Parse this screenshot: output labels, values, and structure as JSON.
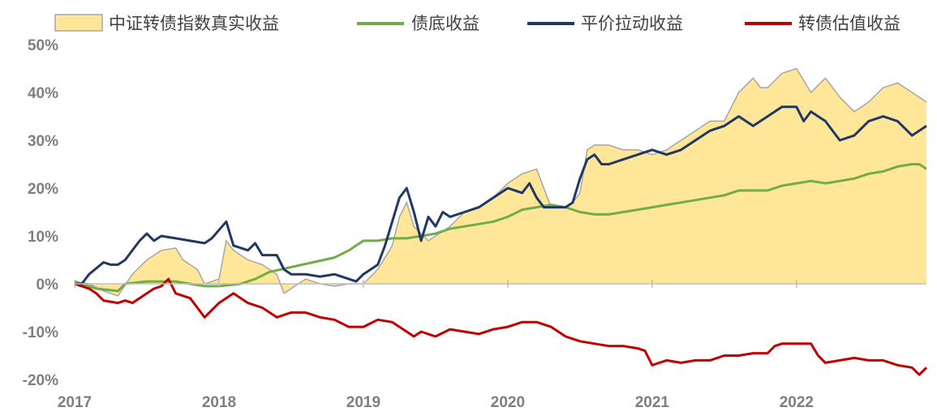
{
  "chart_data": {
    "type": "line",
    "title": "",
    "xlabel": "",
    "ylabel": "",
    "x_ticks": [
      "2017",
      "2018",
      "2019",
      "2020",
      "2021",
      "2022"
    ],
    "x_range": [
      2017.0,
      2022.9
    ],
    "y_ticks": [
      "50%",
      "40%",
      "30%",
      "20%",
      "10%",
      "0%",
      "-10%",
      "-20%"
    ],
    "ylim": [
      -20,
      50
    ],
    "unit": "%",
    "grid": false,
    "legend_position": "top",
    "series": [
      {
        "name": "中证转债指数真实收益",
        "kind": "area",
        "color": "#ffe699",
        "stroke": "#a6a6a6",
        "points": [
          [
            2017.0,
            0.5
          ],
          [
            2017.1,
            0
          ],
          [
            2017.2,
            -1.5
          ],
          [
            2017.3,
            -2.5
          ],
          [
            2017.4,
            2
          ],
          [
            2017.5,
            5
          ],
          [
            2017.6,
            7
          ],
          [
            2017.7,
            7.5
          ],
          [
            2017.75,
            5
          ],
          [
            2017.85,
            3
          ],
          [
            2017.9,
            0
          ],
          [
            2018.0,
            1
          ],
          [
            2018.05,
            9
          ],
          [
            2018.1,
            7
          ],
          [
            2018.2,
            5
          ],
          [
            2018.3,
            4
          ],
          [
            2018.4,
            2
          ],
          [
            2018.45,
            -2
          ],
          [
            2018.5,
            -1
          ],
          [
            2018.6,
            1
          ],
          [
            2018.7,
            0
          ],
          [
            2018.8,
            -0.5
          ],
          [
            2018.9,
            0
          ],
          [
            2019.0,
            0
          ],
          [
            2019.1,
            3
          ],
          [
            2019.2,
            8
          ],
          [
            2019.25,
            14
          ],
          [
            2019.3,
            17
          ],
          [
            2019.35,
            12
          ],
          [
            2019.45,
            9
          ],
          [
            2019.5,
            10
          ],
          [
            2019.6,
            12
          ],
          [
            2019.7,
            15
          ],
          [
            2019.8,
            16
          ],
          [
            2019.9,
            18
          ],
          [
            2020.0,
            21
          ],
          [
            2020.1,
            23
          ],
          [
            2020.2,
            24
          ],
          [
            2020.3,
            16
          ],
          [
            2020.4,
            16
          ],
          [
            2020.45,
            17
          ],
          [
            2020.5,
            19
          ],
          [
            2020.55,
            28
          ],
          [
            2020.6,
            29
          ],
          [
            2020.7,
            29
          ],
          [
            2020.8,
            28
          ],
          [
            2020.9,
            28
          ],
          [
            2021.0,
            27
          ],
          [
            2021.1,
            28
          ],
          [
            2021.2,
            30
          ],
          [
            2021.3,
            32
          ],
          [
            2021.4,
            34
          ],
          [
            2021.5,
            34
          ],
          [
            2021.6,
            40
          ],
          [
            2021.7,
            43
          ],
          [
            2021.75,
            41
          ],
          [
            2021.8,
            41
          ],
          [
            2021.9,
            44
          ],
          [
            2022.0,
            45
          ],
          [
            2022.1,
            40
          ],
          [
            2022.2,
            43
          ],
          [
            2022.3,
            39
          ],
          [
            2022.4,
            36
          ],
          [
            2022.5,
            38
          ],
          [
            2022.6,
            41
          ],
          [
            2022.7,
            42
          ],
          [
            2022.8,
            40
          ],
          [
            2022.9,
            38
          ]
        ]
      },
      {
        "name": "债底收益",
        "kind": "line",
        "color": "#70ad47",
        "points": [
          [
            2017.0,
            0.5
          ],
          [
            2017.15,
            -1
          ],
          [
            2017.3,
            -1.5
          ],
          [
            2017.35,
            0
          ],
          [
            2017.5,
            0.5
          ],
          [
            2017.7,
            0.5
          ],
          [
            2017.8,
            0
          ],
          [
            2017.9,
            -0.5
          ],
          [
            2018.0,
            -0.5
          ],
          [
            2018.15,
            0
          ],
          [
            2018.25,
            1
          ],
          [
            2018.35,
            2.5
          ],
          [
            2018.5,
            3.5
          ],
          [
            2018.65,
            4.5
          ],
          [
            2018.8,
            5.5
          ],
          [
            2018.9,
            7
          ],
          [
            2019.0,
            9
          ],
          [
            2019.1,
            9
          ],
          [
            2019.2,
            9.5
          ],
          [
            2019.3,
            9.5
          ],
          [
            2019.4,
            10
          ],
          [
            2019.5,
            10.5
          ],
          [
            2019.6,
            11.5
          ],
          [
            2019.7,
            12
          ],
          [
            2019.8,
            12.5
          ],
          [
            2019.9,
            13
          ],
          [
            2020.0,
            14
          ],
          [
            2020.1,
            15.5
          ],
          [
            2020.2,
            16
          ],
          [
            2020.3,
            16.5
          ],
          [
            2020.4,
            16
          ],
          [
            2020.5,
            15
          ],
          [
            2020.6,
            14.5
          ],
          [
            2020.7,
            14.5
          ],
          [
            2020.8,
            15
          ],
          [
            2020.9,
            15.5
          ],
          [
            2021.0,
            16
          ],
          [
            2021.1,
            16.5
          ],
          [
            2021.2,
            17
          ],
          [
            2021.3,
            17.5
          ],
          [
            2021.4,
            18
          ],
          [
            2021.5,
            18.5
          ],
          [
            2021.6,
            19.5
          ],
          [
            2021.7,
            19.5
          ],
          [
            2021.8,
            19.5
          ],
          [
            2021.9,
            20.5
          ],
          [
            2022.0,
            21
          ],
          [
            2022.1,
            21.5
          ],
          [
            2022.2,
            21
          ],
          [
            2022.3,
            21.5
          ],
          [
            2022.4,
            22
          ],
          [
            2022.5,
            23
          ],
          [
            2022.6,
            23.5
          ],
          [
            2022.7,
            24.5
          ],
          [
            2022.8,
            25
          ],
          [
            2022.85,
            25
          ],
          [
            2022.9,
            24
          ]
        ]
      },
      {
        "name": "平价拉动收益",
        "kind": "line",
        "color": "#1f3864",
        "points": [
          [
            2017.0,
            0
          ],
          [
            2017.05,
            0
          ],
          [
            2017.1,
            2
          ],
          [
            2017.2,
            4.5
          ],
          [
            2017.25,
            4
          ],
          [
            2017.3,
            4
          ],
          [
            2017.35,
            5
          ],
          [
            2017.45,
            9
          ],
          [
            2017.5,
            10.5
          ],
          [
            2017.55,
            9
          ],
          [
            2017.6,
            10
          ],
          [
            2017.7,
            9.5
          ],
          [
            2017.8,
            9
          ],
          [
            2017.9,
            8.5
          ],
          [
            2017.95,
            9.5
          ],
          [
            2018.05,
            13
          ],
          [
            2018.1,
            8
          ],
          [
            2018.2,
            7
          ],
          [
            2018.25,
            8.5
          ],
          [
            2018.3,
            6
          ],
          [
            2018.4,
            6
          ],
          [
            2018.45,
            3
          ],
          [
            2018.5,
            2
          ],
          [
            2018.6,
            2
          ],
          [
            2018.7,
            1.5
          ],
          [
            2018.8,
            2
          ],
          [
            2018.9,
            1
          ],
          [
            2018.95,
            0.5
          ],
          [
            2019.0,
            2
          ],
          [
            2019.1,
            4
          ],
          [
            2019.15,
            8
          ],
          [
            2019.2,
            13
          ],
          [
            2019.25,
            18
          ],
          [
            2019.3,
            20
          ],
          [
            2019.35,
            15
          ],
          [
            2019.4,
            9
          ],
          [
            2019.45,
            14
          ],
          [
            2019.5,
            12
          ],
          [
            2019.55,
            15
          ],
          [
            2019.6,
            14
          ],
          [
            2019.7,
            15
          ],
          [
            2019.8,
            16
          ],
          [
            2019.9,
            18
          ],
          [
            2020.0,
            20
          ],
          [
            2020.1,
            19
          ],
          [
            2020.15,
            21
          ],
          [
            2020.2,
            18
          ],
          [
            2020.25,
            16
          ],
          [
            2020.3,
            16
          ],
          [
            2020.4,
            16
          ],
          [
            2020.45,
            17
          ],
          [
            2020.5,
            22
          ],
          [
            2020.55,
            26
          ],
          [
            2020.6,
            27
          ],
          [
            2020.65,
            25
          ],
          [
            2020.7,
            25
          ],
          [
            2020.8,
            26
          ],
          [
            2020.9,
            27
          ],
          [
            2021.0,
            28
          ],
          [
            2021.1,
            27
          ],
          [
            2021.2,
            28
          ],
          [
            2021.3,
            30
          ],
          [
            2021.4,
            32
          ],
          [
            2021.5,
            33
          ],
          [
            2021.6,
            35
          ],
          [
            2021.7,
            33
          ],
          [
            2021.8,
            35
          ],
          [
            2021.9,
            37
          ],
          [
            2022.0,
            37
          ],
          [
            2022.05,
            34
          ],
          [
            2022.1,
            36
          ],
          [
            2022.2,
            34
          ],
          [
            2022.3,
            30
          ],
          [
            2022.4,
            31
          ],
          [
            2022.5,
            34
          ],
          [
            2022.6,
            35
          ],
          [
            2022.7,
            34
          ],
          [
            2022.8,
            31
          ],
          [
            2022.85,
            32
          ],
          [
            2022.9,
            33
          ]
        ]
      },
      {
        "name": "转债估值收益",
        "kind": "line",
        "color": "#c00000",
        "points": [
          [
            2017.0,
            0
          ],
          [
            2017.1,
            -1
          ],
          [
            2017.15,
            -2
          ],
          [
            2017.2,
            -3.5
          ],
          [
            2017.3,
            -4
          ],
          [
            2017.35,
            -3.5
          ],
          [
            2017.4,
            -4
          ],
          [
            2017.5,
            -2
          ],
          [
            2017.55,
            -1
          ],
          [
            2017.6,
            -0.5
          ],
          [
            2017.65,
            1
          ],
          [
            2017.7,
            -2
          ],
          [
            2017.8,
            -3
          ],
          [
            2017.85,
            -5
          ],
          [
            2017.9,
            -7
          ],
          [
            2018.0,
            -4
          ],
          [
            2018.1,
            -2
          ],
          [
            2018.2,
            -4
          ],
          [
            2018.3,
            -5
          ],
          [
            2018.4,
            -7
          ],
          [
            2018.5,
            -6
          ],
          [
            2018.6,
            -6
          ],
          [
            2018.7,
            -7
          ],
          [
            2018.8,
            -7.5
          ],
          [
            2018.9,
            -9
          ],
          [
            2019.0,
            -9
          ],
          [
            2019.1,
            -7.5
          ],
          [
            2019.2,
            -8
          ],
          [
            2019.25,
            -9
          ],
          [
            2019.35,
            -11
          ],
          [
            2019.4,
            -10
          ],
          [
            2019.5,
            -11
          ],
          [
            2019.6,
            -9.5
          ],
          [
            2019.7,
            -10
          ],
          [
            2019.8,
            -10.5
          ],
          [
            2019.9,
            -9.5
          ],
          [
            2020.0,
            -9
          ],
          [
            2020.1,
            -8
          ],
          [
            2020.2,
            -8
          ],
          [
            2020.3,
            -9
          ],
          [
            2020.4,
            -11
          ],
          [
            2020.5,
            -12
          ],
          [
            2020.6,
            -12.5
          ],
          [
            2020.7,
            -13
          ],
          [
            2020.8,
            -13
          ],
          [
            2020.9,
            -13.5
          ],
          [
            2020.95,
            -14
          ],
          [
            2021.0,
            -17
          ],
          [
            2021.1,
            -16
          ],
          [
            2021.2,
            -16.5
          ],
          [
            2021.3,
            -16
          ],
          [
            2021.4,
            -16
          ],
          [
            2021.5,
            -15
          ],
          [
            2021.6,
            -15
          ],
          [
            2021.7,
            -14.5
          ],
          [
            2021.8,
            -14.5
          ],
          [
            2021.85,
            -13
          ],
          [
            2021.9,
            -12.5
          ],
          [
            2022.0,
            -12.5
          ],
          [
            2022.1,
            -12.5
          ],
          [
            2022.15,
            -15
          ],
          [
            2022.2,
            -16.5
          ],
          [
            2022.3,
            -16
          ],
          [
            2022.4,
            -15.5
          ],
          [
            2022.5,
            -16
          ],
          [
            2022.6,
            -16
          ],
          [
            2022.7,
            -17
          ],
          [
            2022.8,
            -17.5
          ],
          [
            2022.85,
            -19
          ],
          [
            2022.9,
            -17.5
          ]
        ]
      }
    ]
  }
}
